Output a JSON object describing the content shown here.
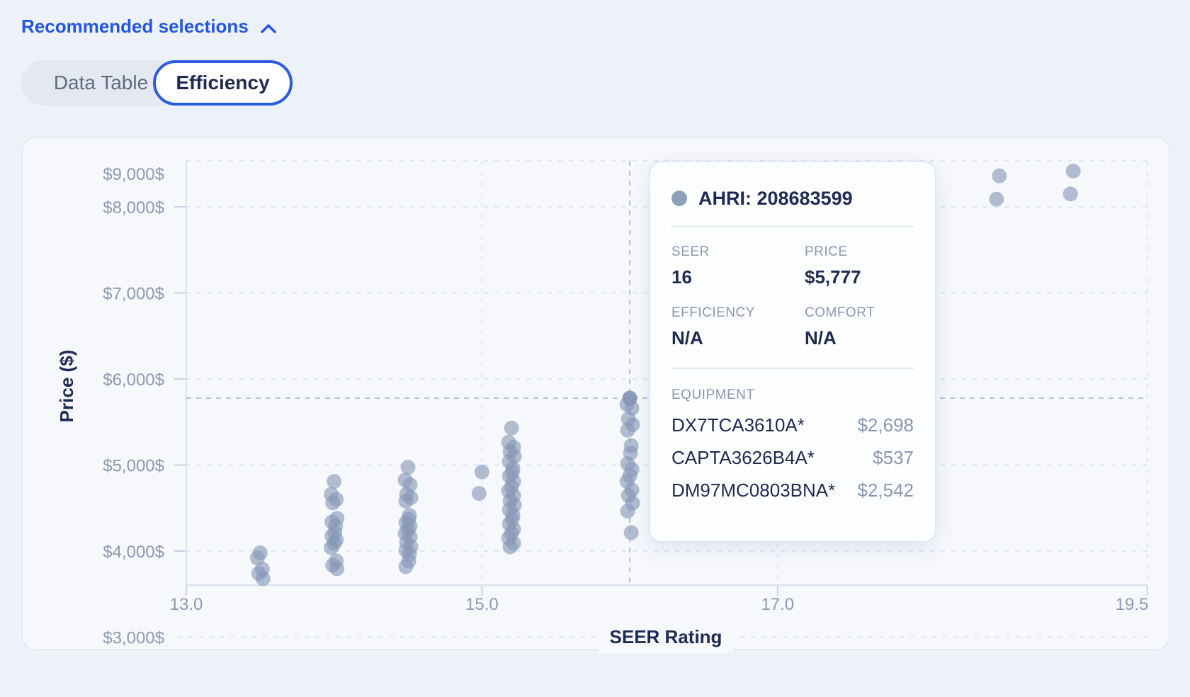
{
  "header": {
    "link_label": "Recommended selections"
  },
  "tabs": [
    {
      "label": "Data Table",
      "active": false
    },
    {
      "label": "Efficiency",
      "active": true
    }
  ],
  "colors": {
    "accent_blue": "#2457e0",
    "navy_text": "#1e2b52",
    "muted_label": "#8a97b1",
    "point": "#8698b6",
    "gridline": "#dfe6f1",
    "crosshair": "#b5c1d7",
    "axis_line": "#d9e1ee",
    "card_bg": "#f6f8fc"
  },
  "chart_data": {
    "type": "scatter",
    "xlabel": "SEER Rating",
    "ylabel": "Price ($)",
    "xlim": [
      13,
      19.5
    ],
    "ylim": [
      3000,
      9000
    ],
    "grid": true,
    "x_ticks": [
      {
        "label": "13.0",
        "value": 13
      },
      {
        "label": "15.0",
        "value": 15
      },
      {
        "label": "17.0",
        "value": 17
      },
      {
        "label": "19.5",
        "value": 19.5
      }
    ],
    "y_ticks": [
      {
        "label": "$3,000$",
        "value": 3000
      },
      {
        "label": "$4,000$",
        "value": 4000
      },
      {
        "label": "$5,000$",
        "value": 5000
      },
      {
        "label": "$6,000$",
        "value": 6000
      },
      {
        "label": "$7,000$",
        "value": 7000
      },
      {
        "label": "$8,000$",
        "value": 8000
      },
      {
        "label": "$9,000$",
        "value": 9000
      }
    ],
    "clusters": [
      {
        "seer": 13.5,
        "prices": [
          3980,
          3920,
          3790,
          3740,
          3680
        ]
      },
      {
        "seer": 14.0,
        "prices": [
          4810,
          4660,
          4600,
          4560,
          4380,
          4340,
          4290,
          4215,
          4175,
          4130,
          4090,
          4040,
          3885,
          3835,
          3795
        ]
      },
      {
        "seer": 14.5,
        "prices": [
          4975,
          4825,
          4770,
          4660,
          4620,
          4580,
          4415,
          4370,
          4330,
          4290,
          4250,
          4205,
          4165,
          4105,
          4050,
          4010,
          3965,
          3885,
          3820
        ]
      },
      {
        "seer": 15.0,
        "prices": [
          4920,
          4670
        ]
      },
      {
        "seer": 15.2,
        "prices": [
          5430,
          5265,
          5205,
          5155,
          5100,
          5040,
          4960,
          4915,
          4870,
          4810,
          4750,
          4700,
          4645,
          4585,
          4535,
          4480,
          4420,
          4370,
          4315,
          4255,
          4205,
          4150,
          4090,
          4050
        ]
      },
      {
        "seer": 16.0,
        "prices": [
          5777,
          5705,
          5660,
          5535,
          5470,
          5405,
          5225,
          5140,
          5015,
          4950,
          4875,
          4810,
          4710,
          4645,
          4560,
          4465,
          4215
        ]
      },
      {
        "seer": 18.5,
        "prices": [
          8360,
          8090
        ]
      },
      {
        "seer": 19.0,
        "prices": [
          8415,
          8150
        ]
      }
    ],
    "selected_point": {
      "seer": 16,
      "price": 5777
    }
  },
  "tooltip": {
    "title": "AHRI: 208683599",
    "fields": [
      {
        "label": "SEER",
        "value": "16"
      },
      {
        "label": "PRICE",
        "value": "$5,777"
      },
      {
        "label": "EFFICIENCY",
        "value": "N/A"
      },
      {
        "label": "COMFORT",
        "value": "N/A"
      }
    ],
    "equipment_label": "EQUIPMENT",
    "equipment": [
      {
        "name": "DX7TCA3610A*",
        "price": "$2,698"
      },
      {
        "name": "CAPTA3626B4A*",
        "price": "$537"
      },
      {
        "name": "DM97MC0803BNA*",
        "price": "$2,542"
      }
    ]
  }
}
